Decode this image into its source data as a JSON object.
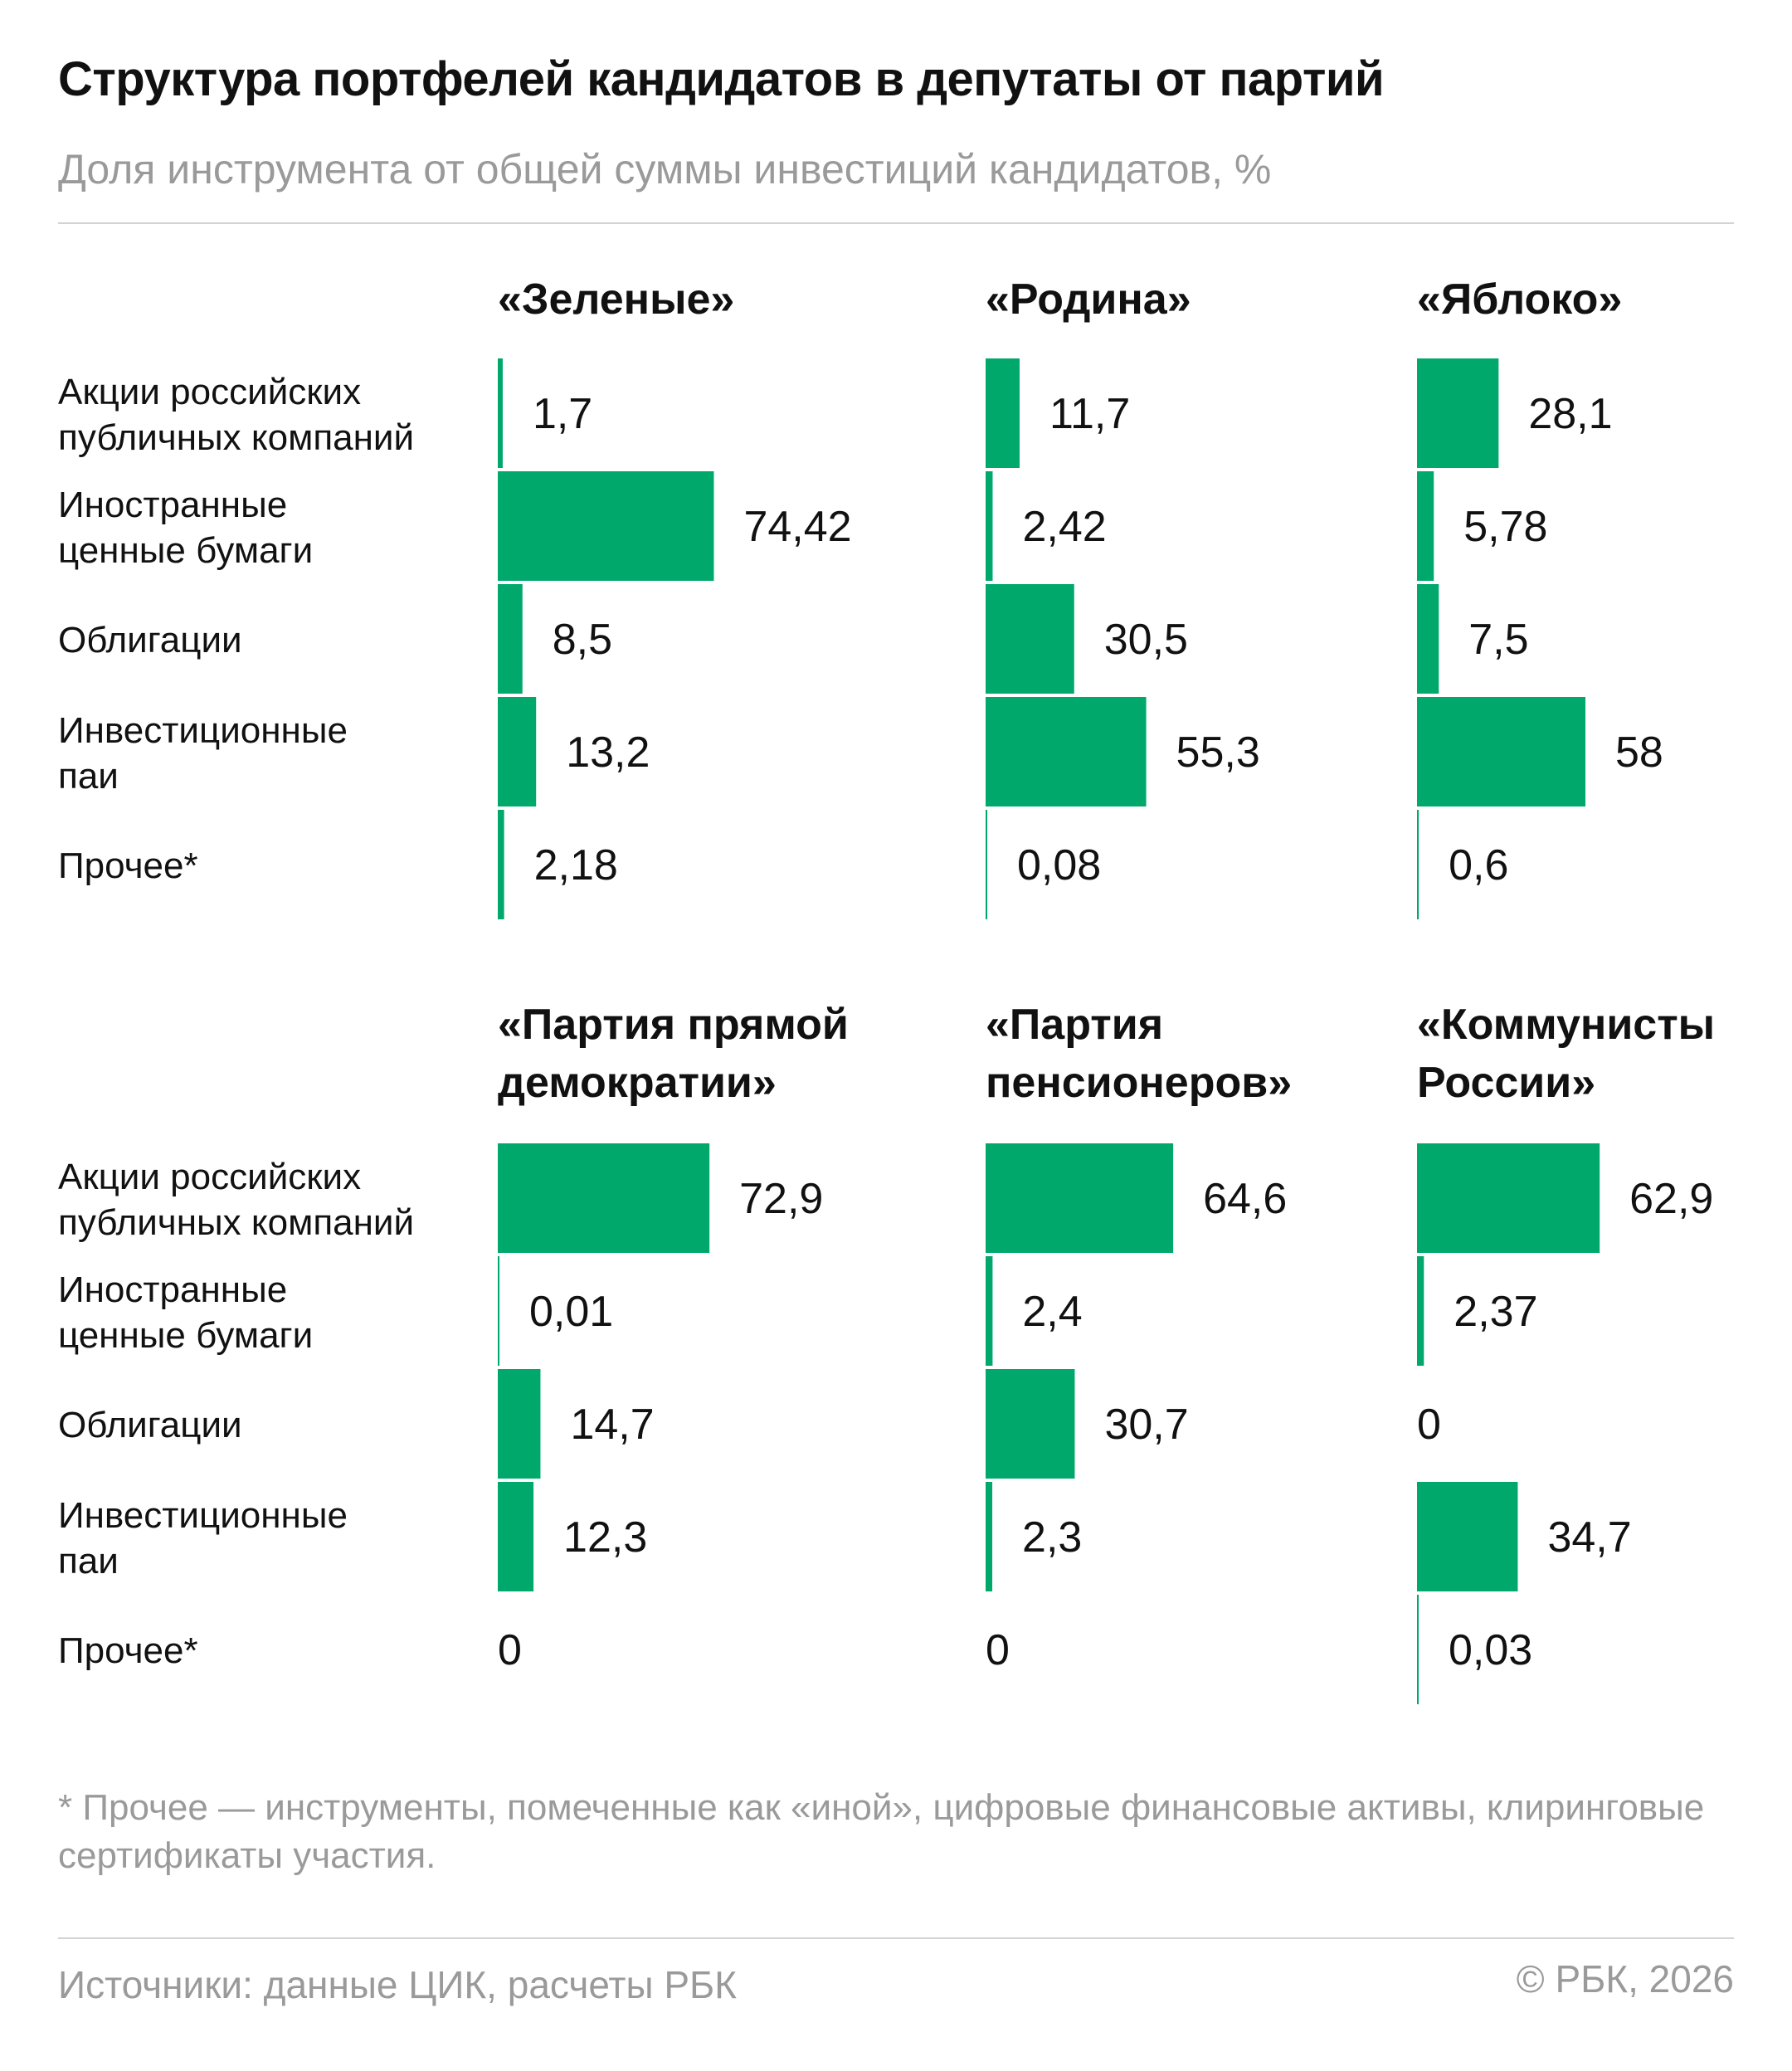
{
  "header": {
    "title": "Структура портфелей кандидатов в депутаты от партий",
    "subtitle": "Доля инструмента от общей суммы инвестиций кандидатов, %"
  },
  "chart_data": {
    "type": "bar",
    "orientation": "horizontal",
    "categories": [
      [
        "Акции российских",
        "публичных компаний"
      ],
      [
        "Иностранные",
        "ценные бумаги"
      ],
      [
        "Облигации"
      ],
      [
        "Инвестиционные",
        "паи"
      ],
      [
        "Прочее*"
      ]
    ],
    "panels": [
      {
        "party": [
          "«Зеленые»"
        ],
        "values": [
          "1,7",
          "74,42",
          "8,5",
          "13,2",
          "2,18"
        ]
      },
      {
        "party": [
          "«Родина»"
        ],
        "values": [
          "11,7",
          "2,42",
          "30,5",
          "55,3",
          "0,08"
        ]
      },
      {
        "party": [
          "«Яблоко»"
        ],
        "values": [
          "28,1",
          "5,78",
          "7,5",
          "58",
          "0,6"
        ]
      },
      {
        "party": [
          "«Партия прямой",
          "демократии»"
        ],
        "values": [
          "72,9",
          "0,01",
          "14,7",
          "12,3",
          "0"
        ]
      },
      {
        "party": [
          "«Партия",
          "пенсионеров»"
        ],
        "values": [
          "64,6",
          "2,4",
          "30,7",
          "2,3",
          "0"
        ]
      },
      {
        "party": [
          "«Коммунисты",
          "России»"
        ],
        "values": [
          "62,9",
          "2,37",
          "0",
          "34,7",
          "0,03"
        ]
      }
    ],
    "xlim": [
      0,
      100
    ],
    "bar_color": "#00a86b",
    "grid": false,
    "legend": "none"
  },
  "footer": {
    "footnote": "* Прочее — инструменты, помеченные как «иной», цифровые финансовые активы, клиринговые сертификаты участия.",
    "source": "Источники: данные ЦИК, расчеты РБК",
    "copyright": "© РБК, 2026"
  }
}
